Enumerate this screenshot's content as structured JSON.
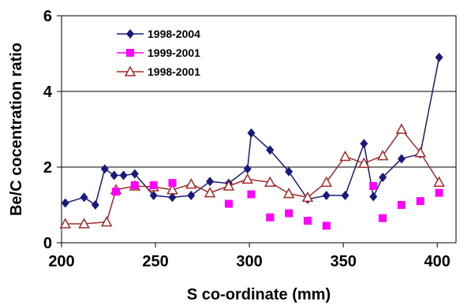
{
  "chart_data": {
    "type": "line",
    "xlabel": "S co-ordinate (mm)",
    "ylabel": "Be/C cocentration ratio",
    "xlim": [
      200,
      410
    ],
    "ylim": [
      0,
      6
    ],
    "xticks": [
      200,
      250,
      300,
      350,
      400
    ],
    "yticks": [
      0,
      2,
      4,
      6
    ],
    "grid": "horizontal lines at 2 and 4",
    "legend_position": "top-left",
    "series": [
      {
        "name": "1998-2004",
        "color": "#1a1a7a",
        "marker": "diamond",
        "line": true,
        "x": [
          202,
          212,
          218,
          223,
          228,
          233,
          239,
          249,
          259,
          269,
          279,
          289,
          299,
          301,
          311,
          321,
          331,
          341,
          351,
          361,
          366,
          371,
          381,
          391,
          401
        ],
        "y": [
          1.05,
          1.2,
          1.0,
          1.95,
          1.78,
          1.78,
          1.82,
          1.25,
          1.2,
          1.25,
          1.62,
          1.57,
          1.95,
          2.9,
          2.45,
          1.88,
          1.15,
          1.25,
          1.25,
          2.62,
          1.22,
          1.73,
          2.22,
          2.35,
          4.9
        ]
      },
      {
        "name": "1999-2001",
        "color": "#ff00ff",
        "marker": "square",
        "line": false,
        "x": [
          229,
          239,
          249,
          259,
          289,
          301,
          311,
          321,
          331,
          341,
          366,
          371,
          381,
          391,
          401
        ],
        "y": [
          1.35,
          1.52,
          1.52,
          1.58,
          1.03,
          1.28,
          0.67,
          0.78,
          0.58,
          0.45,
          1.5,
          0.65,
          1.0,
          1.1,
          1.32
        ]
      },
      {
        "name": "1998-2001",
        "color": "#a52a2a",
        "marker": "triangle-open",
        "line": true,
        "x": [
          202,
          212,
          224,
          229,
          239,
          249,
          259,
          269,
          279,
          289,
          299,
          311,
          321,
          331,
          341,
          351,
          361,
          371,
          381,
          391,
          401
        ],
        "y": [
          0.5,
          0.5,
          0.55,
          1.4,
          1.5,
          1.48,
          1.4,
          1.55,
          1.32,
          1.5,
          1.68,
          1.6,
          1.3,
          1.2,
          1.6,
          2.28,
          2.1,
          2.3,
          3.0,
          2.38,
          1.6
        ]
      }
    ]
  }
}
